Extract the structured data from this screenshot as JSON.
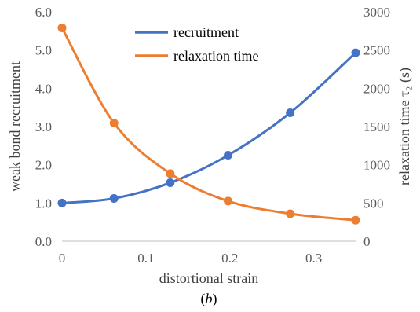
{
  "chart_data": {
    "type": "line",
    "xlabel": "distortional strain",
    "ylabel": "weak bond recruitment",
    "y2label": "relaxation time τ₂ (s)",
    "caption_open": "(",
    "caption_label": "b",
    "caption_close": ")",
    "xlim": [
      0,
      0.35
    ],
    "ylim": [
      0,
      6
    ],
    "y2lim": [
      0,
      3000
    ],
    "xticks": [
      "0",
      "0.1",
      "0.2",
      "0.3"
    ],
    "xtick_values": [
      0,
      0.1,
      0.2,
      0.3
    ],
    "yticks": [
      "0.0",
      "1.0",
      "2.0",
      "3.0",
      "4.0",
      "5.0",
      "6.0"
    ],
    "ytick_values": [
      0,
      1,
      2,
      3,
      4,
      5,
      6
    ],
    "y2ticks": [
      "0",
      "500",
      "1000",
      "1500",
      "2000",
      "2500",
      "3000"
    ],
    "y2tick_values": [
      0,
      500,
      1000,
      1500,
      2000,
      2500,
      3000
    ],
    "legend_position": "top-center",
    "grid": false,
    "series": [
      {
        "name": "recruitment",
        "axis": "left",
        "color": "#4472C4",
        "x": [
          0,
          0.062,
          0.129,
          0.198,
          0.272,
          0.35
        ],
        "y": [
          1.0,
          1.12,
          1.53,
          2.25,
          3.36,
          4.93
        ]
      },
      {
        "name": "relaxation time",
        "axis": "right",
        "color": "#ED7D31",
        "x": [
          0,
          0.062,
          0.129,
          0.198,
          0.272,
          0.35
        ],
        "y": [
          2790,
          1545,
          885,
          525,
          360,
          275
        ]
      }
    ]
  }
}
